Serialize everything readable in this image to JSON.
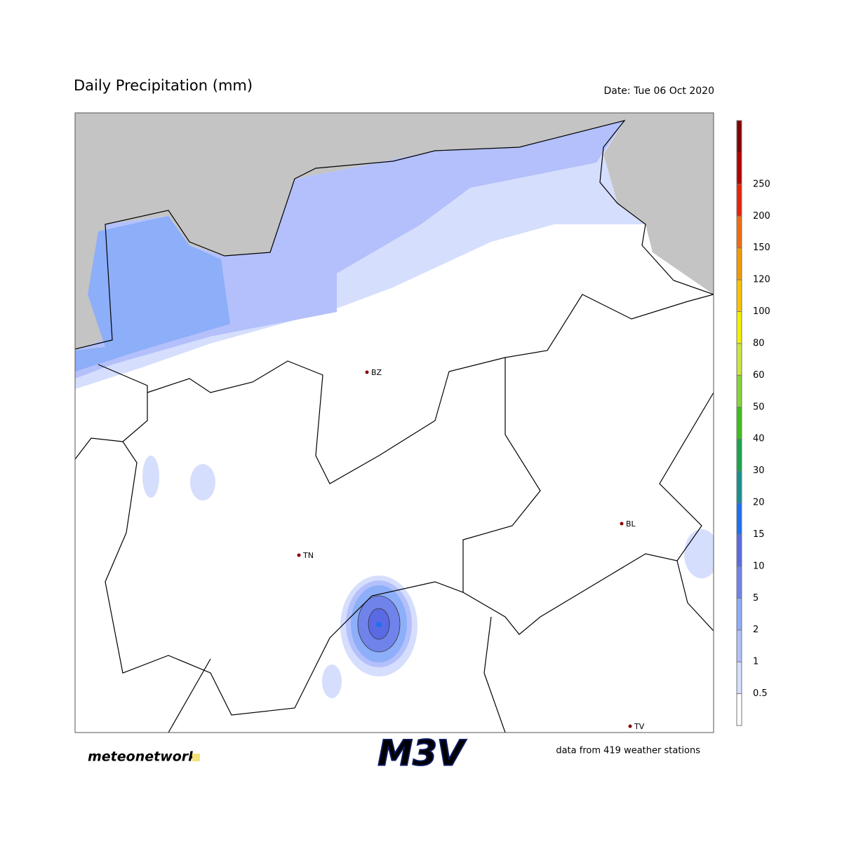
{
  "title": "Daily Precipitation (mm)",
  "date": "Date: Tue 06 Oct 2020",
  "cities": [
    "BZ",
    "TN",
    "BL",
    "TV"
  ],
  "colorbar": {
    "ticks": [
      0.5,
      1,
      2,
      5,
      10,
      15,
      20,
      30,
      40,
      50,
      60,
      80,
      100,
      120,
      150,
      200,
      250
    ],
    "colors": [
      "#ffffff",
      "#d6defd",
      "#b3c0fb",
      "#8daef8",
      "#6f83ea",
      "#5a6ae4",
      "#1f6ff0",
      "#17918f",
      "#17a64a",
      "#3cbf1e",
      "#88d33a",
      "#c9e63f",
      "#f3f000",
      "#f8c300",
      "#f39a00",
      "#ef6b10",
      "#e6230d",
      "#b40000",
      "#850000"
    ]
  },
  "footer": {
    "brand": "meteonetwork",
    "logo": "M3V",
    "note": "data from 419 weather stations"
  }
}
